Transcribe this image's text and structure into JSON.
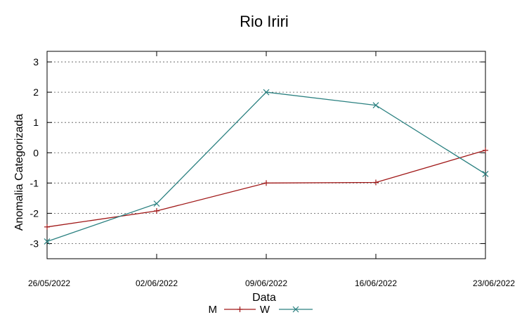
{
  "chart_data": {
    "type": "line",
    "title": "Rio Iriri",
    "xlabel": "Data",
    "ylabel": "Anomalia Categorizada",
    "categories": [
      "26/05/2022",
      "02/06/2022",
      "09/06/2022",
      "16/06/2022",
      "23/06/2022"
    ],
    "ylim": [
      -3.5,
      3.35
    ],
    "yticks": [
      "-3",
      "-2",
      "-1",
      "0",
      "1",
      "2",
      "3"
    ],
    "grid": "horizontal-dotted",
    "legend_position": "bottom",
    "series": [
      {
        "name": "M",
        "color": "#a01818",
        "marker": "+",
        "values": [
          -2.45,
          -1.92,
          -1.0,
          -0.98,
          0.08
        ]
      },
      {
        "name": "W",
        "color": "#2a8080",
        "marker": "x",
        "values": [
          -2.93,
          -1.68,
          2.0,
          1.57,
          -0.7
        ]
      }
    ]
  }
}
